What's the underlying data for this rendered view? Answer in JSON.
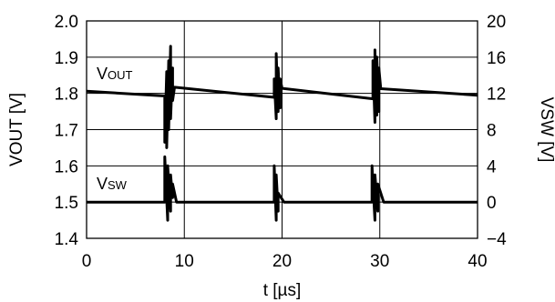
{
  "chart_data": {
    "type": "line",
    "xlabel": "t [µs]",
    "ylabel_left": "VOUT [V]",
    "ylabel_right": "VSW [V]",
    "xlim": [
      0,
      40
    ],
    "ylim_left": [
      1.4,
      2.0
    ],
    "ylim_right": [
      -4,
      20
    ],
    "grid": true,
    "x_ticks": [
      "0",
      "10",
      "20",
      "30",
      "40"
    ],
    "y_left_ticks": [
      "1.4",
      "1.5",
      "1.6",
      "1.7",
      "1.8",
      "1.9",
      "2.0"
    ],
    "y_right_ticks": [
      "−4",
      "0",
      "4",
      "8",
      "12",
      "16",
      "20"
    ],
    "series": [
      {
        "name": "VOUT",
        "axis": "left",
        "x": [
          0,
          8.0,
          8.0,
          8.2,
          8.2,
          8.4,
          8.4,
          8.6,
          8.6,
          8.8,
          8.8,
          9.0,
          19.2,
          19.2,
          19.4,
          19.4,
          19.6,
          19.6,
          19.8,
          19.8,
          20.0,
          29.3,
          29.3,
          29.5,
          29.5,
          29.7,
          29.7,
          29.9,
          29.9,
          30.1,
          40
        ],
        "y": [
          1.806,
          1.793,
          1.665,
          1.86,
          1.65,
          1.89,
          1.7,
          1.93,
          1.73,
          1.87,
          1.78,
          1.817,
          1.789,
          1.84,
          1.73,
          1.91,
          1.75,
          1.87,
          1.76,
          1.84,
          1.814,
          1.785,
          1.89,
          1.72,
          1.92,
          1.74,
          1.9,
          1.75,
          1.87,
          1.813,
          1.795
        ]
      },
      {
        "name": "VSW",
        "axis": "right",
        "x": [
          0,
          8.0,
          8.0,
          8.3,
          8.3,
          8.6,
          8.6,
          8.8,
          8.8,
          9.2,
          19.2,
          19.2,
          19.4,
          19.4,
          19.6,
          19.6,
          20.2,
          29.2,
          29.2,
          29.5,
          29.5,
          29.8,
          29.8,
          30.4,
          40
        ],
        "y": [
          0,
          0,
          5,
          -2,
          4,
          -1,
          3,
          0.5,
          2,
          0,
          0,
          4,
          -2,
          3,
          -1,
          1,
          0,
          0,
          4,
          -2,
          3,
          -1,
          2,
          0,
          0
        ]
      }
    ]
  },
  "labels": {
    "series_vout_main": "V",
    "series_vout_sub": "OUT",
    "series_vsw_main": "V",
    "series_vsw_sub": "SW"
  }
}
